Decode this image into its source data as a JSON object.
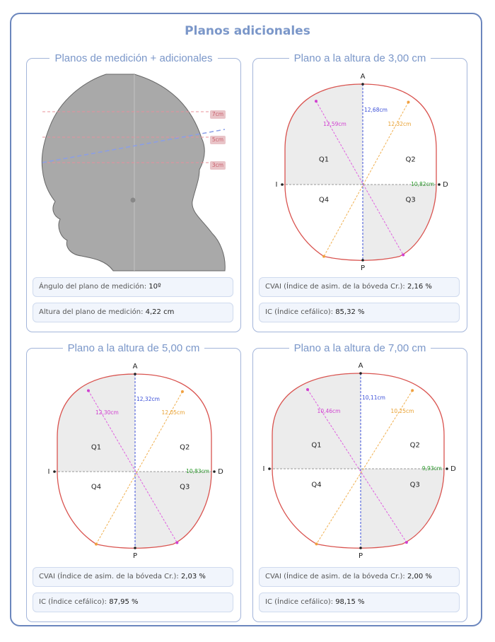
{
  "title": "Planos adicionales",
  "panels": [
    {
      "title": "Planos de medición + adicionales",
      "markers": [
        "7cm",
        "5cm",
        "3cm"
      ],
      "fields": [
        {
          "label": "Ángulo del plano de medición:",
          "value": "10º"
        },
        {
          "label": "Altura del plano de medición:",
          "value": "4,22 cm"
        }
      ]
    },
    {
      "title": "Plano a la altura de 3,00 cm",
      "points": [
        "A",
        "P",
        "I",
        "D"
      ],
      "quadrants": [
        "Q1",
        "Q2",
        "Q3",
        "Q4"
      ],
      "measurements": [
        "12,68cm",
        "12,59cm",
        "12,32cm",
        "10,82cm"
      ],
      "fields": [
        {
          "label": "CVAI (Índice de asim. de la bóveda Cr.):",
          "value": "2,16 %"
        },
        {
          "label": "IC (Índice cefálico):",
          "value": "85,32 %"
        }
      ]
    },
    {
      "title": "Plano a la altura de 5,00 cm",
      "points": [
        "A",
        "P",
        "I",
        "D"
      ],
      "quadrants": [
        "Q1",
        "Q2",
        "Q3",
        "Q4"
      ],
      "measurements": [
        "12,32cm",
        "12,30cm",
        "12,05cm",
        "10,83cm"
      ],
      "fields": [
        {
          "label": "CVAI (Índice de asim. de la bóveda Cr.):",
          "value": "2,03 %"
        },
        {
          "label": "IC (Índice cefálico):",
          "value": "87,95 %"
        }
      ]
    },
    {
      "title": "Plano a la altura de 7,00 cm",
      "points": [
        "A",
        "P",
        "I",
        "D"
      ],
      "quadrants": [
        "Q1",
        "Q2",
        "Q3",
        "Q4"
      ],
      "measurements": [
        "10,11cm",
        "10,46cm",
        "10,25cm",
        "9,93cm"
      ],
      "fields": [
        {
          "label": "CVAI (Índice de asim. de la bóveda Cr.):",
          "value": "2,00 %"
        },
        {
          "label": "IC (Índice cefálico):",
          "value": "98,15 %"
        }
      ]
    }
  ]
}
